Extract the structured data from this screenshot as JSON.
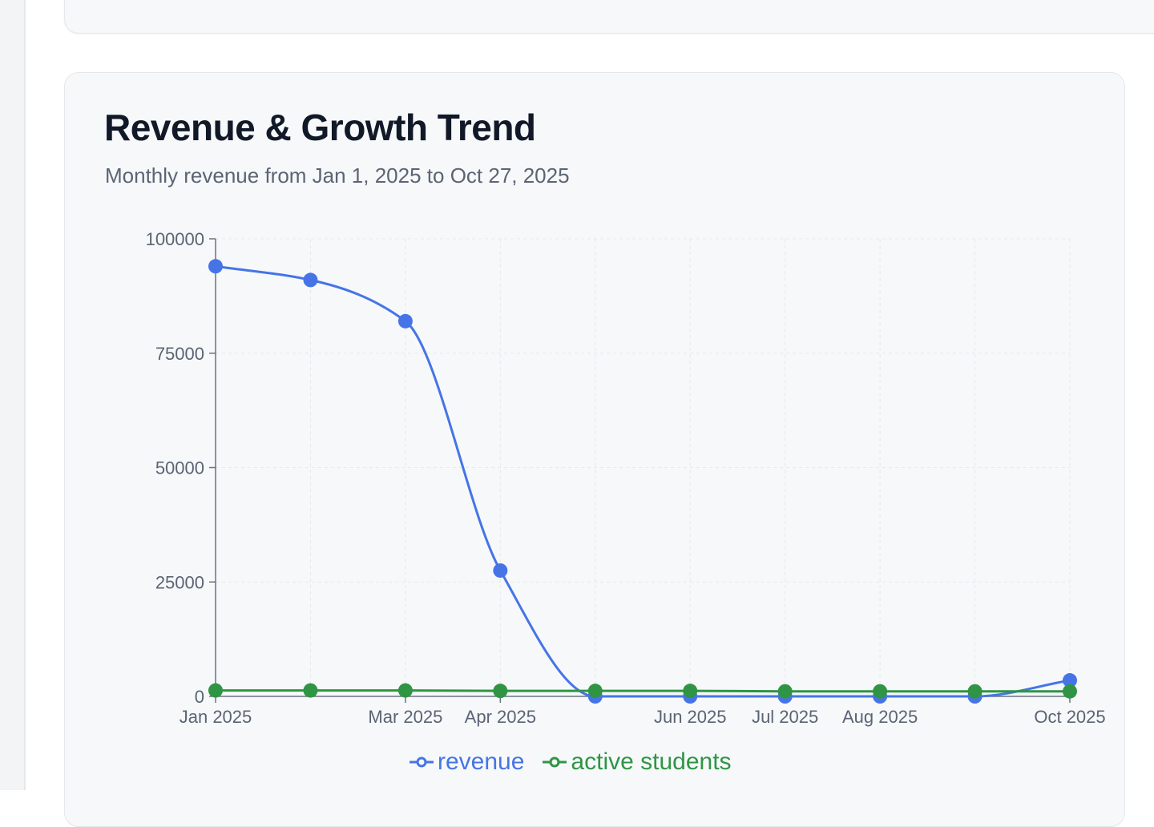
{
  "header": {
    "title": "Revenue & Growth Trend",
    "subtitle": "Monthly revenue from Jan 1, 2025 to Oct 27, 2025"
  },
  "colors": {
    "revenue": "#4674e6",
    "students": "#2f9544",
    "axis": "#6b7280",
    "grid": "#e5e7eb",
    "tick_text": "#5b6474"
  },
  "chart_data": {
    "type": "line",
    "title": "Revenue & Growth Trend",
    "subtitle": "Monthly revenue from Jan 1, 2025 to Oct 27, 2025",
    "x": [
      "2025-01",
      "2025-02",
      "2025-03",
      "2025-04",
      "2025-05",
      "2025-06",
      "2025-07",
      "2025-08",
      "2025-09",
      "2025-10"
    ],
    "x_tick_labels": [
      {
        "x": "2025-01",
        "label": "Jan 2025"
      },
      {
        "x": "2025-03",
        "label": "Mar 2025"
      },
      {
        "x": "2025-04",
        "label": "Apr 2025"
      },
      {
        "x": "2025-06",
        "label": "Jun 2025"
      },
      {
        "x": "2025-07",
        "label": "Jul 2025"
      },
      {
        "x": "2025-08",
        "label": "Aug 2025"
      },
      {
        "x": "2025-10",
        "label": "Oct 2025"
      }
    ],
    "y_ticks": [
      0,
      25000,
      50000,
      75000,
      100000
    ],
    "ylim": [
      0,
      100000
    ],
    "grid": true,
    "legend_position": "bottom",
    "series": [
      {
        "name": "revenue",
        "values": [
          94000,
          91000,
          82000,
          27500,
          0,
          0,
          0,
          0,
          0,
          3500
        ]
      },
      {
        "name": "active students",
        "values": [
          1300,
          1300,
          1300,
          1200,
          1200,
          1200,
          1100,
          1100,
          1100,
          1100
        ]
      }
    ]
  }
}
